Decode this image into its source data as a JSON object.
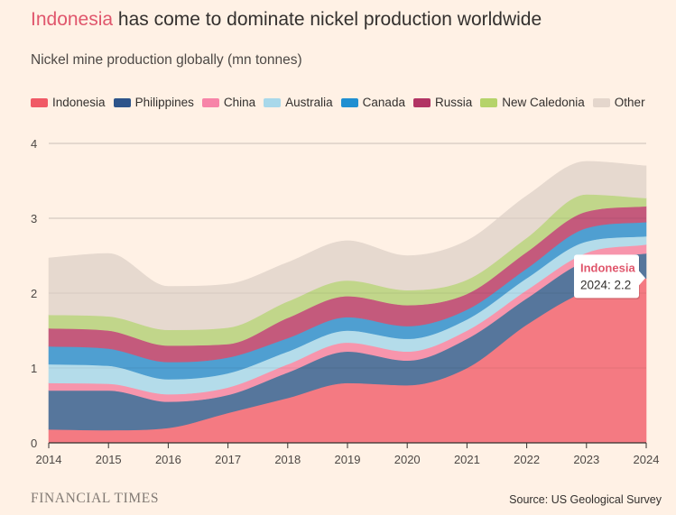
{
  "header": {
    "title_highlight": "Indonesia",
    "title_rest": " has come to dominate nickel production worldwide",
    "subtitle": "Nickel mine production globally (mn tonnes)"
  },
  "colors": {
    "Indonesia": "#f47a82",
    "Philippines": "#56769c",
    "China": "#f795ac",
    "Australia": "#b4dcea",
    "Canada": "#4f9fd1",
    "Russia": "#c45a7c",
    "New Caledonia": "#c1d68a",
    "Other": "#e6d9cf",
    "legend_Indonesia": "#f05a66",
    "legend_Philippines": "#2d548a",
    "legend_China": "#f784a8",
    "legend_Australia": "#a8d8ea",
    "legend_Canada": "#1f8fd1",
    "legend_Russia": "#b23464",
    "legend_New Caledonia": "#b5d36a",
    "legend_Other": "#e4d6cc",
    "highlight": "#e0566c"
  },
  "chart_data": {
    "type": "area",
    "stacked": true,
    "title": "Indonesia has come to dominate nickel production worldwide",
    "subtitle": "Nickel mine production globally (mn tonnes)",
    "xlabel": "",
    "ylabel": "",
    "x": [
      2014,
      2015,
      2016,
      2017,
      2018,
      2019,
      2020,
      2021,
      2022,
      2023,
      2024
    ],
    "x_tick_labels": [
      "2014",
      "2015",
      "2016",
      "2017",
      "2018",
      "2019",
      "2020",
      "2021",
      "2022",
      "2023",
      "2024"
    ],
    "y_tick_labels": [
      "0",
      "1",
      "2",
      "3",
      "4"
    ],
    "ylim": [
      0,
      4
    ],
    "grid": true,
    "legend_position": "top",
    "series": [
      {
        "name": "Indonesia",
        "values": [
          0.18,
          0.17,
          0.2,
          0.4,
          0.6,
          0.8,
          0.77,
          1.0,
          1.58,
          2.03,
          2.2
        ]
      },
      {
        "name": "Philippines",
        "values": [
          0.52,
          0.53,
          0.35,
          0.24,
          0.34,
          0.42,
          0.33,
          0.39,
          0.35,
          0.4,
          0.33
        ]
      },
      {
        "name": "China",
        "values": [
          0.1,
          0.09,
          0.1,
          0.1,
          0.11,
          0.12,
          0.12,
          0.11,
          0.11,
          0.11,
          0.12
        ]
      },
      {
        "name": "Australia",
        "values": [
          0.25,
          0.24,
          0.2,
          0.19,
          0.17,
          0.16,
          0.17,
          0.15,
          0.16,
          0.15,
          0.11
        ]
      },
      {
        "name": "Canada",
        "values": [
          0.24,
          0.23,
          0.23,
          0.21,
          0.18,
          0.18,
          0.17,
          0.13,
          0.13,
          0.18,
          0.19
        ]
      },
      {
        "name": "Russia",
        "values": [
          0.24,
          0.24,
          0.22,
          0.18,
          0.27,
          0.28,
          0.28,
          0.21,
          0.22,
          0.22,
          0.21
        ]
      },
      {
        "name": "New Caledonia",
        "values": [
          0.18,
          0.19,
          0.21,
          0.22,
          0.22,
          0.21,
          0.2,
          0.19,
          0.19,
          0.23,
          0.11
        ]
      },
      {
        "name": "Other",
        "values": [
          0.76,
          0.84,
          0.58,
          0.58,
          0.52,
          0.53,
          0.46,
          0.52,
          0.56,
          0.44,
          0.43
        ]
      }
    ],
    "annotation": {
      "series": "Indonesia",
      "label": "Indonesia",
      "year_value": "2024: 2.2",
      "x": 2024,
      "y": 2.2
    }
  },
  "footer": {
    "brand": "FINANCIAL TIMES",
    "source": "Source: US Geological Survey"
  }
}
